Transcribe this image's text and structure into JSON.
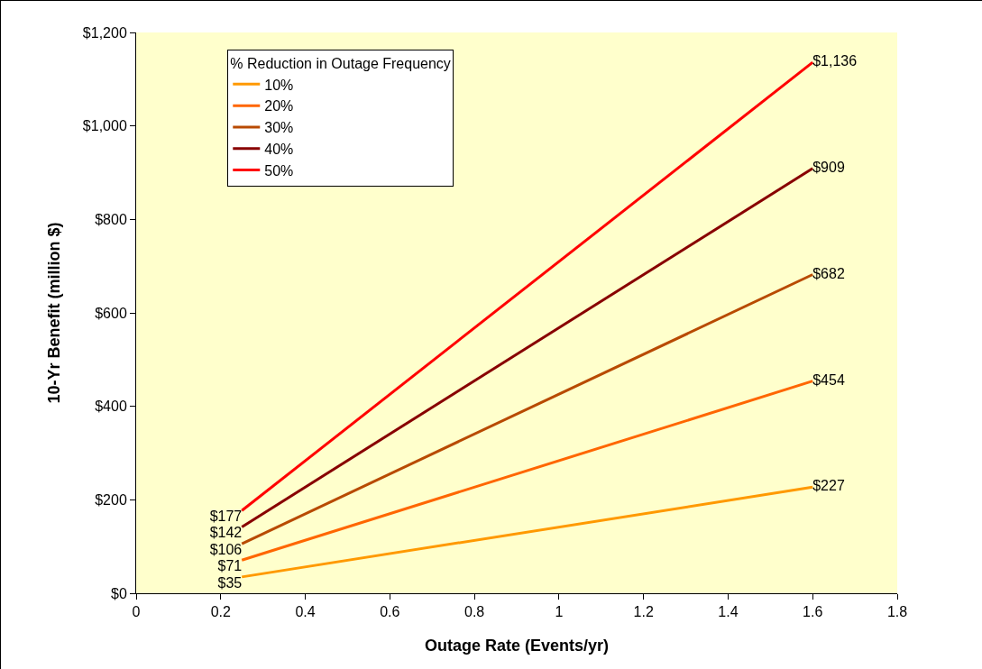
{
  "chart_data": {
    "type": "line",
    "xlabel": "Outage Rate (Events/yr)",
    "ylabel": "10-Yr Benefit (million $)",
    "legend_title": "% Reduction in Outage Frequency",
    "x": [
      0.25,
      1.6
    ],
    "series": [
      {
        "name": "10%",
        "color": "#ff9900",
        "values": [
          35,
          227
        ],
        "value_labels": [
          "$35",
          "$227"
        ]
      },
      {
        "name": "20%",
        "color": "#ff6600",
        "values": [
          71,
          454
        ],
        "value_labels": [
          "$71",
          "$454"
        ]
      },
      {
        "name": "30%",
        "color": "#b84a00",
        "values": [
          106,
          682
        ],
        "value_labels": [
          "$106",
          "$682"
        ]
      },
      {
        "name": "40%",
        "color": "#880000",
        "values": [
          142,
          909
        ],
        "value_labels": [
          "$142",
          "$909"
        ]
      },
      {
        "name": "50%",
        "color": "#ff0000",
        "values": [
          177,
          1136
        ],
        "value_labels": [
          "$177",
          "$1,136"
        ]
      }
    ],
    "xlim": [
      0,
      1.8
    ],
    "xticks": [
      0,
      0.2,
      0.4,
      0.6,
      0.8,
      1,
      1.2,
      1.4,
      1.6,
      1.8
    ],
    "ylim": [
      0,
      1200
    ],
    "yticks": [
      {
        "value": 0,
        "label": "$0"
      },
      {
        "value": 200,
        "label": "$200"
      },
      {
        "value": 400,
        "label": "$400"
      },
      {
        "value": 600,
        "label": "$600"
      },
      {
        "value": 800,
        "label": "$800"
      },
      {
        "value": 1000,
        "label": "$1,000"
      },
      {
        "value": 1200,
        "label": "$1,200"
      }
    ],
    "grid": false,
    "legend": "top left",
    "marker": "none",
    "line_style": "solid"
  }
}
